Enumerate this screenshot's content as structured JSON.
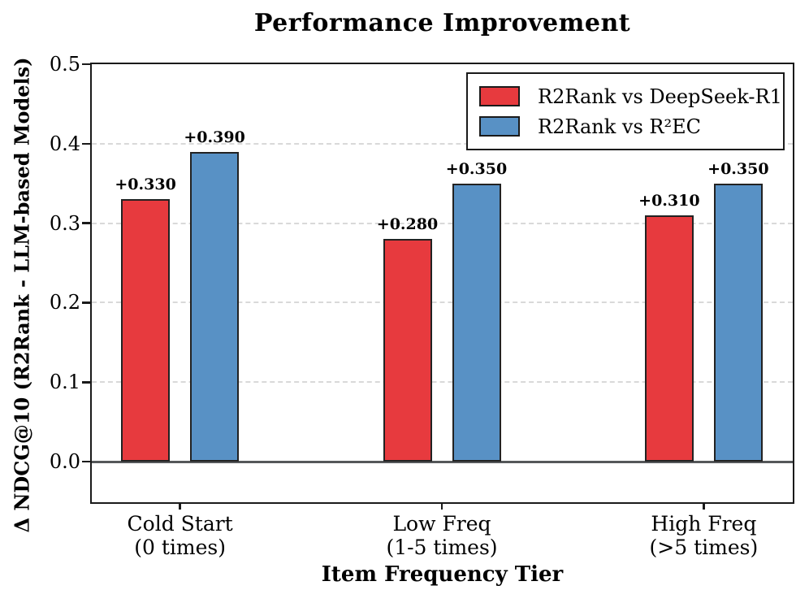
{
  "chart_data": {
    "type": "bar",
    "title": "Performance Improvement",
    "xlabel": "Item Frequency Tier",
    "ylabel": "Δ NDCG@10 (R2Rank - LLM-based Models)",
    "categories": [
      [
        "Cold Start",
        "(0 times)"
      ],
      [
        "Low Freq",
        "(1-5 times)"
      ],
      [
        "High Freq",
        "(>5 times)"
      ]
    ],
    "series": [
      {
        "name": "R2Rank vs DeepSeek-R1",
        "color": "#E73A3E",
        "values": [
          0.33,
          0.28,
          0.31
        ],
        "labels": [
          "+0.330",
          "+0.280",
          "+0.310"
        ]
      },
      {
        "name": "R2Rank vs R²EC",
        "color": "#5891C5",
        "values": [
          0.39,
          0.35,
          0.35
        ],
        "labels": [
          "+0.390",
          "+0.350",
          "+0.350"
        ]
      }
    ],
    "ylim": [
      -0.05,
      0.5
    ],
    "yticks": [
      0.0,
      0.1,
      0.2,
      0.3,
      0.4,
      0.5
    ],
    "ytick_labels": [
      "0.0",
      "0.1",
      "0.2",
      "0.3",
      "0.4",
      "0.5"
    ],
    "grid_values": [
      0.1,
      0.2,
      0.3,
      0.4
    ],
    "grid": "horizontal-dashed",
    "zero_line": true,
    "legend_position": "upper right",
    "colors": {
      "bar_edge": "#222222",
      "zero_line": "#55585a",
      "grid_line": "#d9d9d9",
      "spine": "#1a1a1a"
    }
  }
}
